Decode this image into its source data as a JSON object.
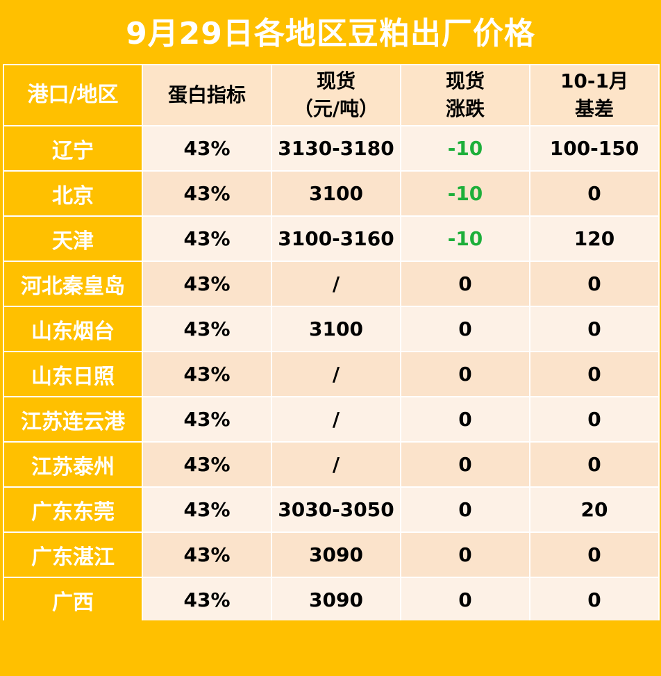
{
  "title": "9月29日各地区豆粕出厂价格",
  "headers": {
    "region": "港口/地区",
    "protein": "蛋白指标",
    "spot_line1": "现货",
    "spot_line2": "（元/吨）",
    "change_line1": "现货",
    "change_line2": "涨跌",
    "basis_line1": "10-1月",
    "basis_line2": "基差"
  },
  "colors": {
    "accent": "#FFC000",
    "row_light": "#FDF1E6",
    "row_dark": "#FBE3CB",
    "down": "#1DAF3A"
  },
  "rows": [
    {
      "region": "辽宁",
      "protein": "43%",
      "spot": "3130-3180",
      "change": "-10",
      "basis": "100-150"
    },
    {
      "region": "北京",
      "protein": "43%",
      "spot": "3100",
      "change": "-10",
      "basis": "0"
    },
    {
      "region": "天津",
      "protein": "43%",
      "spot": "3100-3160",
      "change": "-10",
      "basis": "120"
    },
    {
      "region": "河北秦皇岛",
      "protein": "43%",
      "spot": "/",
      "change": "0",
      "basis": "0"
    },
    {
      "region": "山东烟台",
      "protein": "43%",
      "spot": "3100",
      "change": "0",
      "basis": "0"
    },
    {
      "region": "山东日照",
      "protein": "43%",
      "spot": "/",
      "change": "0",
      "basis": "0"
    },
    {
      "region": "江苏连云港",
      "protein": "43%",
      "spot": "/",
      "change": "0",
      "basis": "0"
    },
    {
      "region": "江苏泰州",
      "protein": "43%",
      "spot": "/",
      "change": "0",
      "basis": "0"
    },
    {
      "region": "广东东莞",
      "protein": "43%",
      "spot": "3030-3050",
      "change": "0",
      "basis": "20"
    },
    {
      "region": "广东湛江",
      "protein": "43%",
      "spot": "3090",
      "change": "0",
      "basis": "0"
    },
    {
      "region": "广西",
      "protein": "43%",
      "spot": "3090",
      "change": "0",
      "basis": "0"
    }
  ]
}
